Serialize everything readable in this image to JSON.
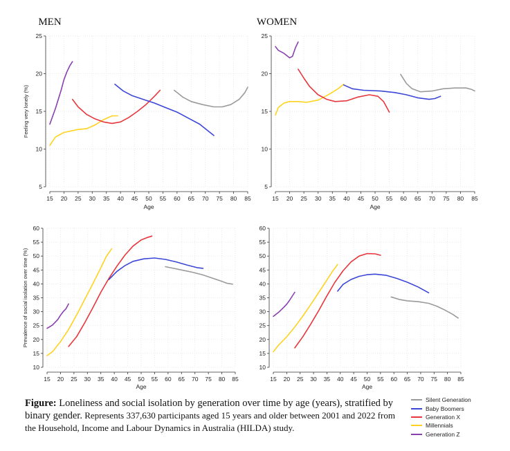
{
  "chart_data": [
    {
      "type": "line",
      "title": "MEN",
      "xlabel": "Age",
      "ylabel": "Feeling very lonely (%)",
      "xlim": [
        15,
        85
      ],
      "ylim": [
        5,
        25
      ],
      "x_ticks": [
        "15",
        "20",
        "25",
        "30",
        "35",
        "40",
        "45",
        "50",
        "55",
        "60",
        "65",
        "70",
        "75",
        "80",
        "85"
      ],
      "y_ticks": [
        "5",
        "10",
        "15",
        "20",
        "25"
      ],
      "grid": true,
      "series": [
        {
          "name": "Generation Z",
          "color": "#8a3fb0",
          "points": [
            [
              15,
              13.3
            ],
            [
              17,
              15.4
            ],
            [
              19,
              17.8
            ],
            [
              20,
              19.2
            ],
            [
              21,
              20.2
            ],
            [
              22,
              21.0
            ],
            [
              23,
              21.6
            ]
          ]
        },
        {
          "name": "Millennials",
          "color": "#ffd21f",
          "points": [
            [
              15,
              10.5
            ],
            [
              17,
              11.6
            ],
            [
              20,
              12.2
            ],
            [
              25,
              12.6
            ],
            [
              28,
              12.7
            ],
            [
              31,
              13.2
            ],
            [
              34,
              13.9
            ],
            [
              37,
              14.4
            ],
            [
              39,
              14.4
            ]
          ]
        },
        {
          "name": "Generation X",
          "color": "#e8363c",
          "points": [
            [
              23,
              16.6
            ],
            [
              25,
              15.6
            ],
            [
              28,
              14.6
            ],
            [
              31,
              14.0
            ],
            [
              34,
              13.6
            ],
            [
              37,
              13.4
            ],
            [
              40,
              13.6
            ],
            [
              43,
              14.2
            ],
            [
              46,
              15.0
            ],
            [
              49,
              15.9
            ],
            [
              52,
              17.0
            ],
            [
              54,
              17.8
            ]
          ]
        },
        {
          "name": "Baby Boomers",
          "color": "#3b46d8",
          "points": [
            [
              38,
              18.6
            ],
            [
              41,
              17.7
            ],
            [
              44,
              17.1
            ],
            [
              48,
              16.6
            ],
            [
              52,
              16.1
            ],
            [
              56,
              15.5
            ],
            [
              60,
              14.9
            ],
            [
              64,
              14.1
            ],
            [
              68,
              13.3
            ],
            [
              73,
              11.8
            ]
          ]
        },
        {
          "name": "Silent Generation",
          "color": "#9a9a9a",
          "points": [
            [
              59,
              17.8
            ],
            [
              62,
              16.9
            ],
            [
              65,
              16.3
            ],
            [
              69,
              15.9
            ],
            [
              73,
              15.6
            ],
            [
              76,
              15.6
            ],
            [
              79,
              15.9
            ],
            [
              82,
              16.6
            ],
            [
              84,
              17.5
            ],
            [
              85,
              18.2
            ]
          ]
        }
      ]
    },
    {
      "type": "line",
      "title": "WOMEN",
      "xlabel": "Age",
      "ylabel": "",
      "xlim": [
        15,
        85
      ],
      "ylim": [
        5,
        25
      ],
      "x_ticks": [
        "15",
        "20",
        "25",
        "30",
        "35",
        "40",
        "45",
        "50",
        "55",
        "60",
        "65",
        "70",
        "75",
        "80",
        "85"
      ],
      "y_ticks": [
        "5",
        "10",
        "15",
        "20",
        "25"
      ],
      "grid": true,
      "series": [
        {
          "name": "Generation Z",
          "color": "#8a3fb0",
          "points": [
            [
              15,
              23.6
            ],
            [
              16,
              23.1
            ],
            [
              18,
              22.7
            ],
            [
              20,
              22.1
            ],
            [
              21,
              22.3
            ],
            [
              22,
              23.4
            ],
            [
              23,
              24.2
            ]
          ]
        },
        {
          "name": "Millennials",
          "color": "#ffd21f",
          "points": [
            [
              15,
              14.5
            ],
            [
              16,
              15.5
            ],
            [
              18,
              16.1
            ],
            [
              20,
              16.3
            ],
            [
              23,
              16.3
            ],
            [
              26,
              16.2
            ],
            [
              30,
              16.5
            ],
            [
              34,
              17.3
            ],
            [
              37,
              18.0
            ],
            [
              39,
              18.6
            ]
          ]
        },
        {
          "name": "Generation X",
          "color": "#e8363c",
          "points": [
            [
              23,
              20.6
            ],
            [
              25,
              19.4
            ],
            [
              27,
              18.3
            ],
            [
              30,
              17.2
            ],
            [
              33,
              16.6
            ],
            [
              36,
              16.3
            ],
            [
              40,
              16.4
            ],
            [
              44,
              16.9
            ],
            [
              48,
              17.2
            ],
            [
              51,
              17.0
            ],
            [
              53,
              16.3
            ],
            [
              55,
              14.9
            ]
          ]
        },
        {
          "name": "Baby Boomers",
          "color": "#3b46d8",
          "points": [
            [
              39,
              18.5
            ],
            [
              42,
              18.0
            ],
            [
              46,
              17.8
            ],
            [
              52,
              17.7
            ],
            [
              57,
              17.5
            ],
            [
              61,
              17.2
            ],
            [
              65,
              16.8
            ],
            [
              69,
              16.6
            ],
            [
              71,
              16.7
            ],
            [
              73,
              17.0
            ]
          ]
        },
        {
          "name": "Silent Generation",
          "color": "#9a9a9a",
          "points": [
            [
              59,
              19.9
            ],
            [
              61,
              18.7
            ],
            [
              63,
              18.0
            ],
            [
              66,
              17.6
            ],
            [
              70,
              17.7
            ],
            [
              74,
              18.0
            ],
            [
              78,
              18.1
            ],
            [
              82,
              18.1
            ],
            [
              84,
              17.9
            ],
            [
              85,
              17.7
            ]
          ]
        }
      ]
    },
    {
      "type": "line",
      "title": "",
      "xlabel": "Age",
      "ylabel": "Prevalence of social isolation over time (%)",
      "xlim": [
        15,
        85
      ],
      "ylim": [
        10,
        60
      ],
      "x_ticks": [
        "15",
        "20",
        "25",
        "30",
        "35",
        "40",
        "45",
        "50",
        "55",
        "60",
        "65",
        "70",
        "75",
        "80",
        "85"
      ],
      "y_ticks": [
        "10",
        "15",
        "20",
        "25",
        "30",
        "35",
        "40",
        "45",
        "50",
        "55",
        "60"
      ],
      "grid": true,
      "series": [
        {
          "name": "Generation Z",
          "color": "#8a3fb0",
          "points": [
            [
              15,
              24.0
            ],
            [
              17,
              25.2
            ],
            [
              19,
              27.2
            ],
            [
              20,
              28.7
            ],
            [
              21,
              30.0
            ],
            [
              22,
              31.0
            ],
            [
              23,
              32.8
            ]
          ]
        },
        {
          "name": "Millennials",
          "color": "#ffd21f",
          "points": [
            [
              15,
              14.2
            ],
            [
              17,
              15.6
            ],
            [
              20,
              19.2
            ],
            [
              23,
              23.6
            ],
            [
              26,
              28.8
            ],
            [
              29,
              34.4
            ],
            [
              32,
              40.0
            ],
            [
              35,
              45.8
            ],
            [
              37,
              49.8
            ],
            [
              39,
              52.6
            ]
          ]
        },
        {
          "name": "Generation X",
          "color": "#e8363c",
          "points": [
            [
              23,
              17.5
            ],
            [
              26,
              21.0
            ],
            [
              29,
              26.0
            ],
            [
              32,
              31.4
            ],
            [
              35,
              37.0
            ],
            [
              38,
              42.0
            ],
            [
              41,
              46.4
            ],
            [
              44,
              50.4
            ],
            [
              47,
              53.6
            ],
            [
              50,
              55.8
            ],
            [
              52,
              56.6
            ],
            [
              54,
              57.2
            ]
          ]
        },
        {
          "name": "Baby Boomers",
          "color": "#3b46d8",
          "points": [
            [
              38,
              41.6
            ],
            [
              41,
              44.5
            ],
            [
              44,
              46.6
            ],
            [
              47,
              48.1
            ],
            [
              51,
              49.0
            ],
            [
              55,
              49.3
            ],
            [
              59,
              48.8
            ],
            [
              63,
              47.9
            ],
            [
              67,
              46.8
            ],
            [
              71,
              45.8
            ],
            [
              73,
              45.6
            ]
          ]
        },
        {
          "name": "Silent Generation",
          "color": "#9a9a9a",
          "points": [
            [
              59,
              46.2
            ],
            [
              62,
              45.6
            ],
            [
              65,
              45.0
            ],
            [
              69,
              44.2
            ],
            [
              73,
              43.2
            ],
            [
              77,
              41.9
            ],
            [
              80,
              40.9
            ],
            [
              82,
              40.2
            ],
            [
              84,
              39.9
            ]
          ]
        }
      ]
    },
    {
      "type": "line",
      "title": "",
      "xlabel": "Age",
      "ylabel": "",
      "xlim": [
        15,
        85
      ],
      "ylim": [
        10,
        60
      ],
      "x_ticks": [
        "15",
        "20",
        "25",
        "30",
        "35",
        "40",
        "45",
        "50",
        "55",
        "60",
        "65",
        "70",
        "75",
        "80",
        "85"
      ],
      "y_ticks": [
        "10",
        "15",
        "20",
        "25",
        "30",
        "35",
        "40",
        "45",
        "50",
        "55",
        "60"
      ],
      "grid": true,
      "series": [
        {
          "name": "Generation Z",
          "color": "#8a3fb0",
          "points": [
            [
              15,
              28.3
            ],
            [
              17,
              29.8
            ],
            [
              19,
              31.7
            ],
            [
              20,
              32.7
            ],
            [
              21,
              34.0
            ],
            [
              22,
              35.5
            ],
            [
              23,
              37.0
            ]
          ]
        },
        {
          "name": "Millennials",
          "color": "#ffd21f",
          "points": [
            [
              15,
              15.6
            ],
            [
              17,
              18.0
            ],
            [
              20,
              21.0
            ],
            [
              23,
              24.5
            ],
            [
              26,
              28.4
            ],
            [
              29,
              32.6
            ],
            [
              32,
              37.0
            ],
            [
              35,
              41.4
            ],
            [
              37,
              44.4
            ],
            [
              39,
              47.0
            ]
          ]
        },
        {
          "name": "Generation X",
          "color": "#e8363c",
          "points": [
            [
              23,
              17.0
            ],
            [
              26,
              21.0
            ],
            [
              29,
              25.6
            ],
            [
              32,
              30.5
            ],
            [
              35,
              35.7
            ],
            [
              38,
              40.6
            ],
            [
              41,
              44.7
            ],
            [
              44,
              47.9
            ],
            [
              47,
              50.0
            ],
            [
              50,
              50.9
            ],
            [
              53,
              50.8
            ],
            [
              55,
              50.3
            ]
          ]
        },
        {
          "name": "Baby Boomers",
          "color": "#3b46d8",
          "points": [
            [
              39,
              37.4
            ],
            [
              41,
              39.8
            ],
            [
              44,
              41.6
            ],
            [
              47,
              42.7
            ],
            [
              50,
              43.3
            ],
            [
              53,
              43.5
            ],
            [
              57,
              43.1
            ],
            [
              61,
              42.0
            ],
            [
              65,
              40.6
            ],
            [
              69,
              38.9
            ],
            [
              73,
              36.8
            ]
          ]
        },
        {
          "name": "Silent Generation",
          "color": "#9a9a9a",
          "points": [
            [
              59,
              35.3
            ],
            [
              62,
              34.4
            ],
            [
              65,
              33.9
            ],
            [
              69,
              33.6
            ],
            [
              73,
              33.0
            ],
            [
              76,
              32.0
            ],
            [
              79,
              30.6
            ],
            [
              82,
              29.0
            ],
            [
              84,
              27.7
            ]
          ]
        }
      ]
    }
  ],
  "caption": {
    "lead_bold": "Figure:",
    "lead": " Loneliness and social isolation by generation over time by age (years), stratified by binary gender.",
    "rest": " Represents 337,630 participants aged 15 years and older between 2001 and 2022 from the Household, Income and Labour Dynamics in Australia (HILDA) study."
  },
  "legend": [
    {
      "label": "Silent Generation",
      "color": "#9a9a9a"
    },
    {
      "label": "Baby Boomers",
      "color": "#3b46d8"
    },
    {
      "label": "Generation X",
      "color": "#e8363c"
    },
    {
      "label": "Millennials",
      "color": "#ffd21f"
    },
    {
      "label": "Generation Z",
      "color": "#8a3fb0"
    }
  ]
}
